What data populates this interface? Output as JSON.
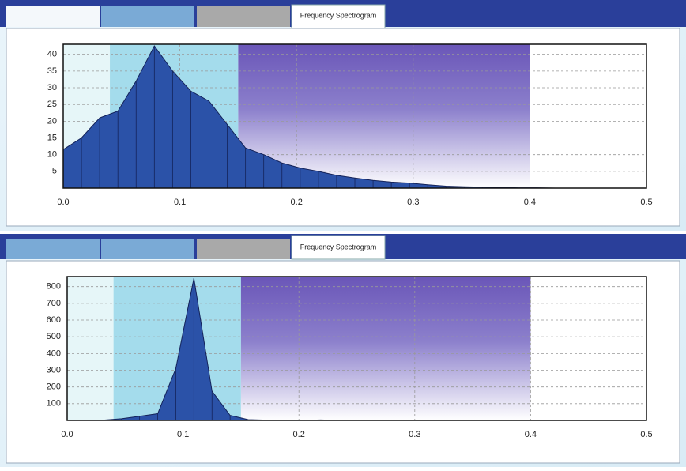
{
  "tabs": [
    "Frequency Spectrogram",
    "Frequency Spectrogram"
  ],
  "chart_data": [
    {
      "type": "area",
      "x": [
        0,
        0.015625,
        0.03125,
        0.046875,
        0.0625,
        0.078125,
        0.09375,
        0.109375,
        0.125,
        0.140625,
        0.15625,
        0.171875,
        0.1875,
        0.203125,
        0.21875,
        0.234375,
        0.25,
        0.265625,
        0.28125,
        0.296875,
        0.3125,
        0.328125,
        0.34375,
        0.359375,
        0.375,
        0.390625,
        0.40625,
        0.421875,
        0.4375,
        0.453125,
        0.46875,
        0.484375,
        0.5
      ],
      "values": [
        11.5,
        15,
        21,
        23,
        32,
        42.5,
        35,
        29,
        26,
        19,
        12,
        10,
        7.5,
        6,
        5,
        3.8,
        3,
        2.3,
        1.8,
        1.5,
        1,
        0.6,
        0.4,
        0.3,
        0.2,
        0.1,
        0.1,
        0,
        0,
        0,
        0,
        0,
        0
      ],
      "color": "#2b52a8",
      "xlim": [
        0,
        0.5
      ],
      "xticks": [
        {
          "value": 0,
          "label": "0.0"
        },
        0.1,
        0.2,
        0.3,
        0.4,
        0.5
      ],
      "ylim": [
        0,
        43
      ],
      "yticks": [
        5,
        10,
        15,
        20,
        25,
        30,
        35,
        40
      ],
      "grid": true
    },
    {
      "type": "area",
      "x": [
        0,
        0.015625,
        0.03125,
        0.046875,
        0.0625,
        0.078125,
        0.09375,
        0.109375,
        0.125,
        0.140625,
        0.15625,
        0.171875,
        0.1875,
        0.203125,
        0.21875,
        0.234375,
        0.25,
        0.265625,
        0.28125,
        0.296875,
        0.3125,
        0.328125,
        0.34375,
        0.359375,
        0.375,
        0.390625,
        0.40625,
        0.421875,
        0.4375,
        0.453125,
        0.46875,
        0.484375,
        0.5
      ],
      "values": [
        0,
        0,
        2,
        10,
        25,
        40,
        310,
        850,
        175,
        30,
        5,
        2,
        0,
        0,
        3,
        0,
        0,
        0,
        0,
        0,
        0,
        0,
        0,
        0,
        0,
        0,
        0,
        0,
        0,
        0,
        0,
        0,
        0
      ],
      "color": "#2b52a8",
      "xlim": [
        0,
        0.5
      ],
      "xticks": [
        {
          "value": 0,
          "label": "0.0"
        },
        0.1,
        0.2,
        0.3,
        0.4,
        0.5
      ],
      "ylim": [
        0,
        860
      ],
      "yticks": [
        100,
        200,
        300,
        400,
        500,
        600,
        700,
        800
      ],
      "grid": true
    }
  ]
}
